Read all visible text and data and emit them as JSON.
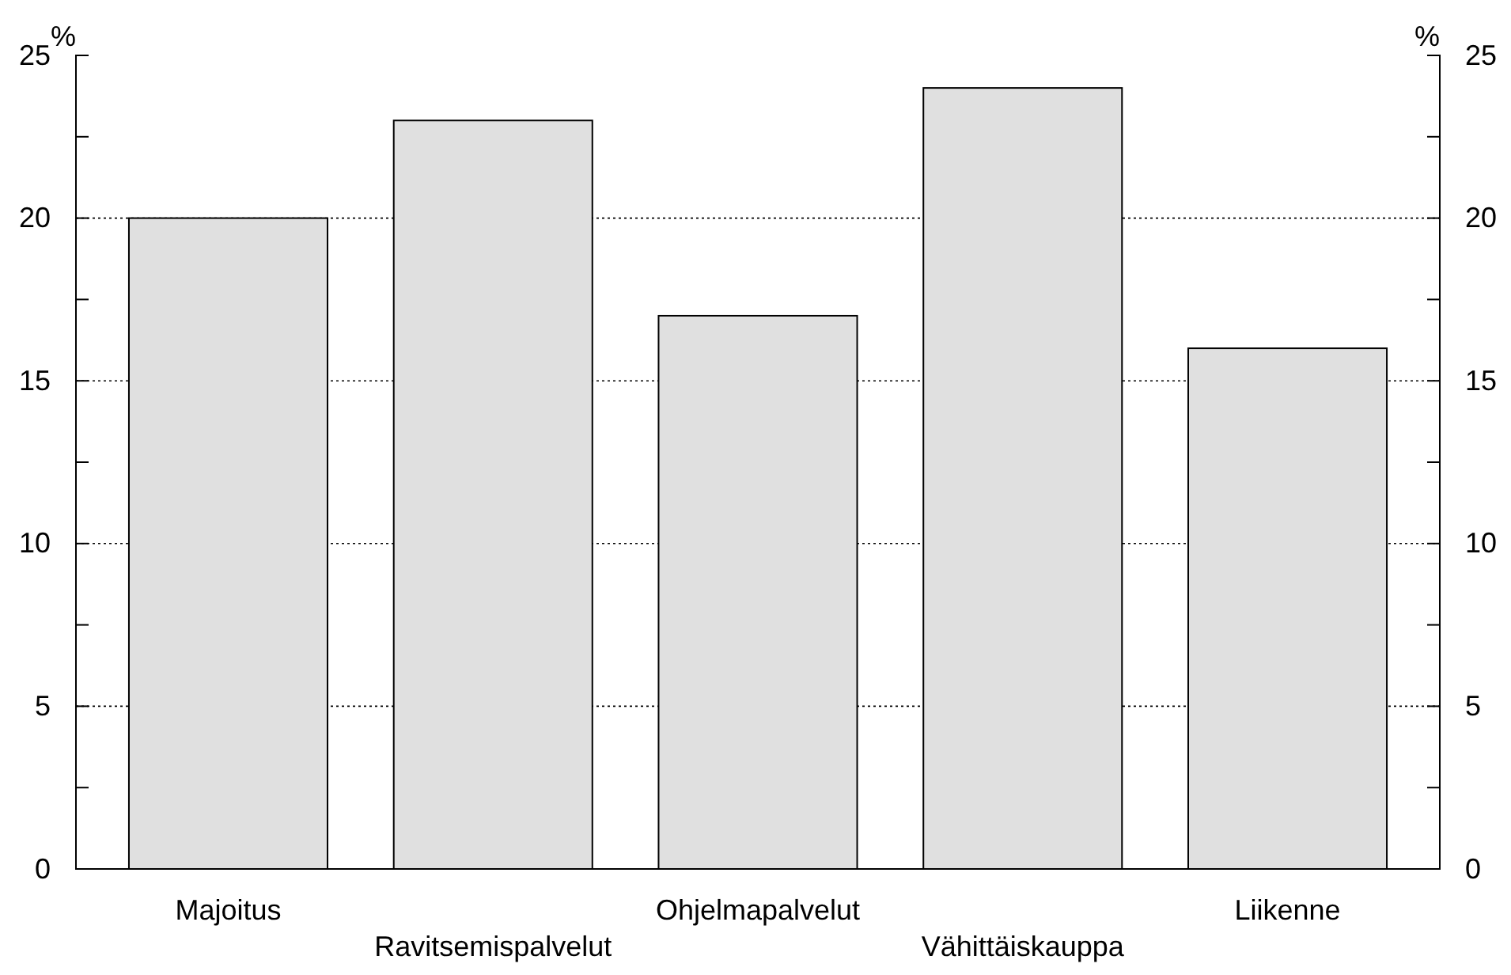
{
  "chart_data": {
    "type": "bar",
    "ylabel": "%",
    "y2label": "%",
    "categories": [
      "Majoitus",
      "Ravitsemispalvelut",
      "Ohjelmapalvelut",
      "Vähittäiskauppa",
      "Liikenne"
    ],
    "values": [
      20,
      23,
      17,
      24,
      16
    ],
    "color": "#e0e0e0",
    "ylim": [
      0,
      25
    ],
    "yticks": [
      0,
      {
        "value": 2.5,
        "label": null
      },
      5,
      {
        "value": 7.5,
        "label": null
      },
      10,
      {
        "value": 12.5,
        "label": null
      },
      15,
      {
        "value": 17.5,
        "label": null
      },
      20,
      {
        "value": 22.5,
        "label": null
      },
      25
    ],
    "y2lim": [
      0,
      25
    ],
    "y2ticks": [
      0,
      {
        "value": 2.5,
        "label": null
      },
      5,
      {
        "value": 7.5,
        "label": null
      },
      10,
      {
        "value": 12.5,
        "label": null
      },
      15,
      {
        "value": 17.5,
        "label": null
      },
      20,
      {
        "value": 22.5,
        "label": null
      },
      25
    ],
    "grid": "y"
  }
}
